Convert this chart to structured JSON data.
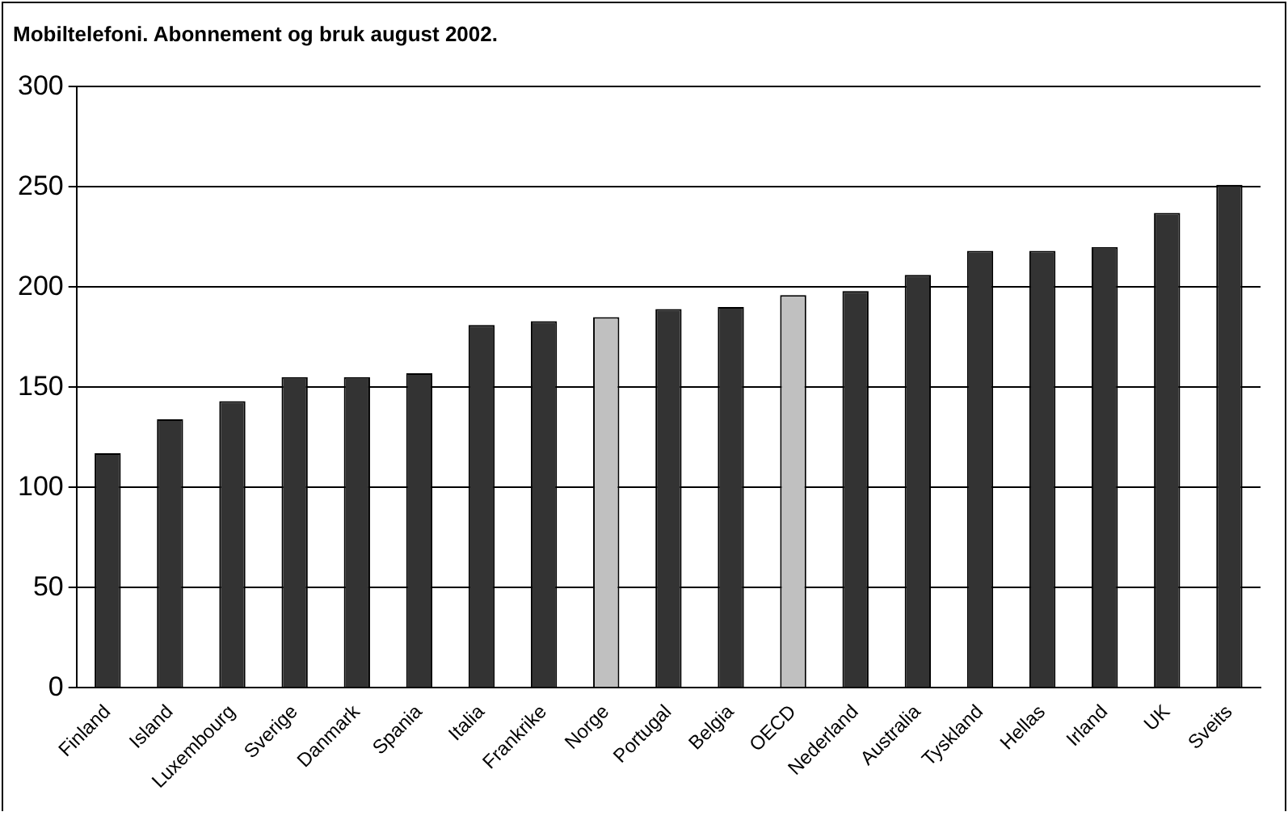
{
  "chart_data": {
    "type": "bar",
    "title": "Mobiltelefoni. Abonnement og bruk august 2002.",
    "categories": [
      "Finland",
      "Island",
      "Luxembourg",
      "Sverige",
      "Danmark",
      "Spania",
      "Italia",
      "Frankrike",
      "Norge",
      "Portugal",
      "Belgia",
      "OECD",
      "Nederland",
      "Australia",
      "Tyskland",
      "Hellas",
      "Irland",
      "UK",
      "Sveits"
    ],
    "values": [
      117,
      134,
      143,
      155,
      155,
      157,
      181,
      183,
      185,
      189,
      190,
      196,
      198,
      206,
      218,
      218,
      220,
      237,
      251
    ],
    "colors": [
      "#333333",
      "#333333",
      "#333333",
      "#333333",
      "#333333",
      "#333333",
      "#333333",
      "#333333",
      "#c0c0c0",
      "#333333",
      "#333333",
      "#c0c0c0",
      "#333333",
      "#333333",
      "#333333",
      "#333333",
      "#333333",
      "#333333",
      "#333333"
    ],
    "ylim": [
      0,
      300
    ],
    "yticks": [
      0,
      50,
      100,
      150,
      200,
      250,
      300
    ],
    "grid": "y",
    "legend": false
  }
}
